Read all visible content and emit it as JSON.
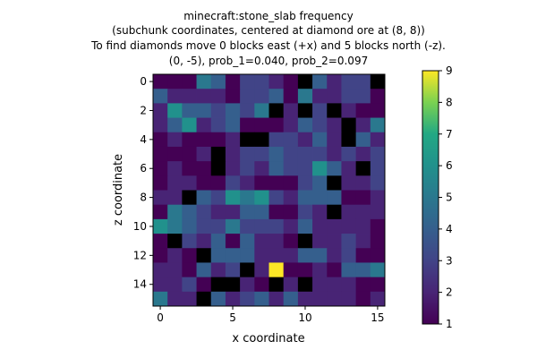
{
  "chart_data": {
    "type": "heatmap",
    "title_lines": [
      "minecraft:stone_slab frequency",
      "(subchunk coordinates, centered at diamond ore at (8, 8))",
      "To find diamonds move 0 blocks east (+x) and 5 blocks north (-z).",
      "(0, -5), prob_1=0.040, prob_2=0.097"
    ],
    "xlabel": "x coordinate",
    "ylabel": "z coordinate",
    "x_ticks": [
      0,
      5,
      10,
      15
    ],
    "y_ticks": [
      0,
      2,
      4,
      6,
      8,
      10,
      12,
      14
    ],
    "colorbar": {
      "min": 1,
      "max": 9,
      "ticks": [
        1,
        2,
        3,
        4,
        5,
        6,
        7,
        8,
        9
      ],
      "colormap": "viridis"
    },
    "z": [
      [
        1,
        1,
        1,
        5,
        4,
        1,
        3,
        3,
        2,
        1,
        0,
        4,
        2,
        3,
        3,
        0
      ],
      [
        4,
        2,
        2,
        2,
        2,
        1,
        3,
        3,
        4,
        1,
        5,
        2,
        2,
        3,
        3,
        1
      ],
      [
        2,
        6,
        4,
        4,
        3,
        4,
        3,
        5,
        0,
        2,
        0,
        3,
        0,
        2,
        1,
        1
      ],
      [
        2,
        4,
        6,
        2,
        3,
        4,
        1,
        1,
        1,
        2,
        4,
        3,
        2,
        0,
        2,
        5
      ],
      [
        1,
        2,
        1,
        1,
        1,
        2,
        0,
        0,
        3,
        3,
        2,
        4,
        2,
        0,
        4,
        2
      ],
      [
        1,
        1,
        1,
        2,
        0,
        2,
        3,
        3,
        4,
        3,
        3,
        3,
        2,
        3,
        2,
        3
      ],
      [
        1,
        2,
        1,
        1,
        0,
        2,
        3,
        2,
        4,
        3,
        3,
        6,
        4,
        2,
        0,
        3
      ],
      [
        1,
        2,
        2,
        1,
        1,
        3,
        2,
        1,
        1,
        1,
        3,
        4,
        0,
        2,
        2,
        3
      ],
      [
        2,
        2,
        0,
        4,
        3,
        6,
        5,
        6,
        3,
        2,
        4,
        4,
        4,
        1,
        1,
        2
      ],
      [
        1,
        5,
        4,
        3,
        2,
        2,
        4,
        4,
        1,
        1,
        3,
        2,
        0,
        2,
        2,
        2
      ],
      [
        6,
        5,
        4,
        3,
        3,
        5,
        3,
        3,
        3,
        2,
        4,
        2,
        2,
        2,
        2,
        1
      ],
      [
        1,
        0,
        3,
        2,
        4,
        1,
        4,
        2,
        2,
        1,
        0,
        2,
        2,
        3,
        2,
        1
      ],
      [
        1,
        2,
        1,
        0,
        4,
        4,
        4,
        2,
        2,
        2,
        4,
        4,
        2,
        3,
        1,
        1
      ],
      [
        2,
        2,
        1,
        4,
        2,
        3,
        0,
        2,
        9,
        1,
        1,
        2,
        1,
        4,
        4,
        5
      ],
      [
        2,
        2,
        3,
        1,
        0,
        0,
        2,
        1,
        0,
        2,
        0,
        2,
        2,
        2,
        1,
        1
      ],
      [
        5,
        2,
        2,
        0,
        4,
        2,
        3,
        4,
        2,
        4,
        2,
        2,
        2,
        2,
        1,
        2
      ]
    ]
  }
}
